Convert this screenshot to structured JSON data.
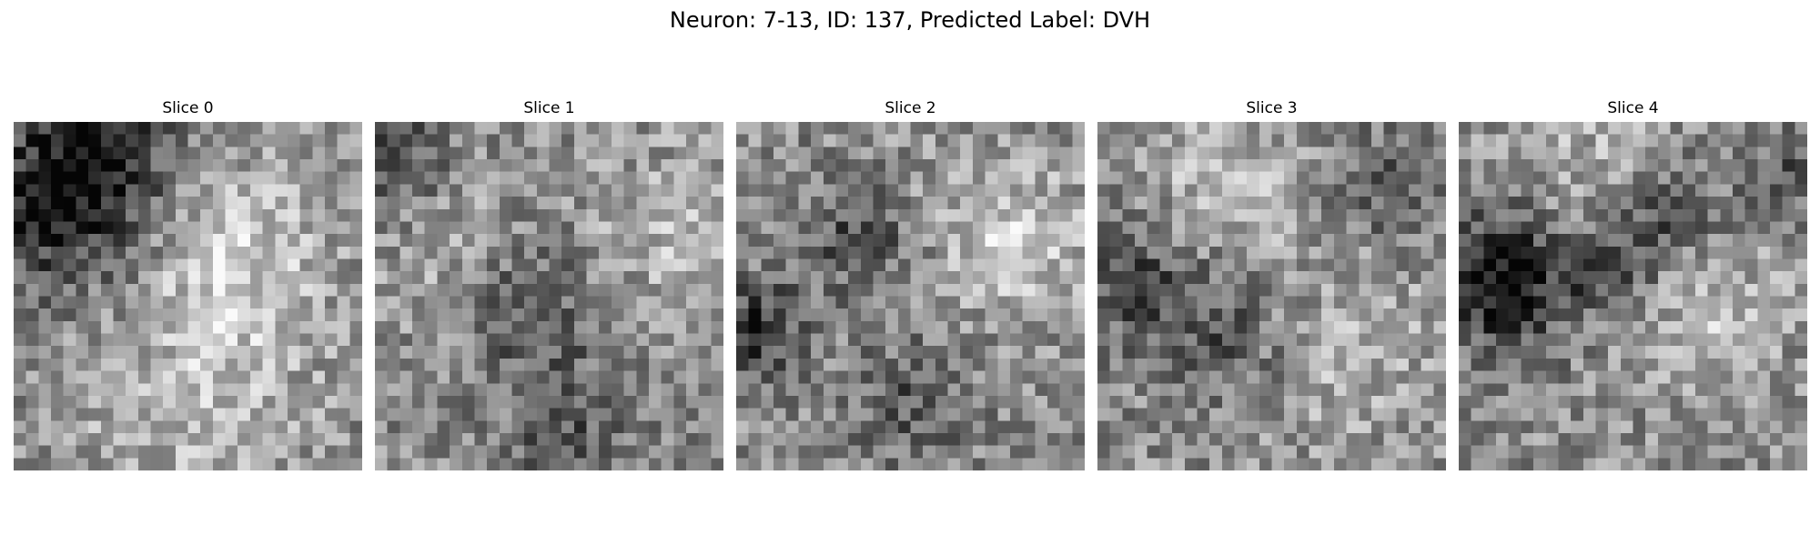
{
  "figure": {
    "title": "Neuron: 7-13, ID: 137, Predicted Label: DVH",
    "colormap": "grayscale",
    "background": "#ffffff"
  },
  "slices": [
    {
      "label": "Slice 0"
    },
    {
      "label": "Slice 1"
    },
    {
      "label": "Slice 2"
    },
    {
      "label": "Slice 3"
    },
    {
      "label": "Slice 4"
    }
  ]
}
